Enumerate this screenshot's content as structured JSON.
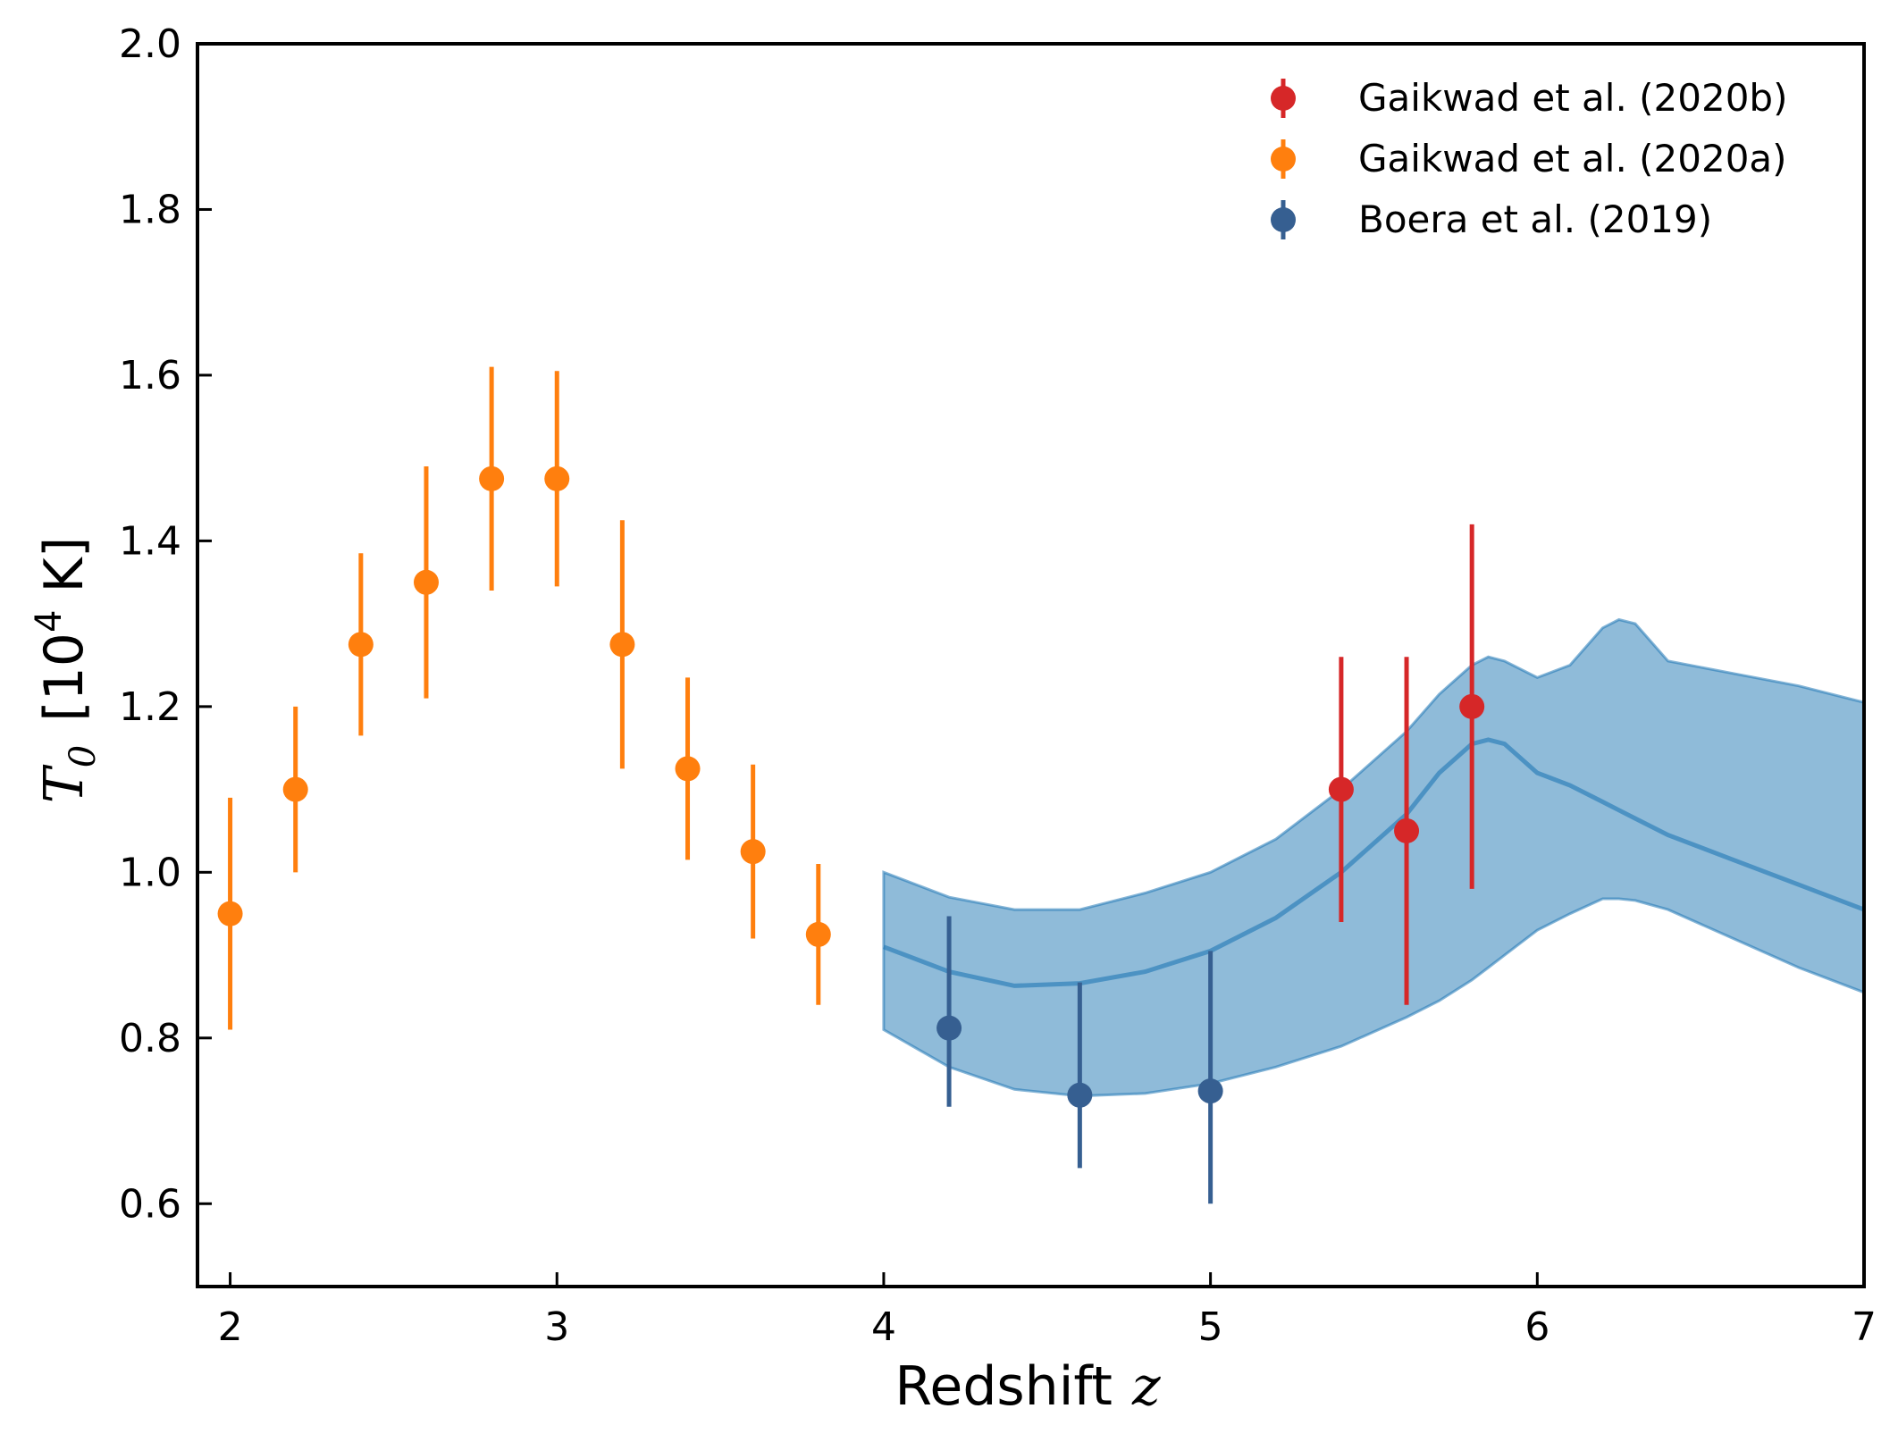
{
  "chart_data": {
    "type": "scatter",
    "xlabel": "Redshift",
    "xlabel_var": "z",
    "ylabel_var": "T",
    "ylabel_sub": "0",
    "ylabel_unit_open": "[10",
    "ylabel_unit_exp": "4",
    "ylabel_unit_close": " K]",
    "xlim": [
      1.9,
      7.0
    ],
    "ylim": [
      0.5,
      2.0
    ],
    "xticks": [
      2,
      3,
      4,
      5,
      6,
      7
    ],
    "yticks": [
      0.6,
      0.8,
      1.0,
      1.2,
      1.4,
      1.6,
      1.8,
      2.0
    ],
    "xtick_labels": [
      "2",
      "3",
      "4",
      "5",
      "6",
      "7"
    ],
    "ytick_labels": [
      "0.6",
      "0.8",
      "1.0",
      "1.2",
      "1.4",
      "1.6",
      "1.8",
      "2.0"
    ],
    "legend_position": "top-right",
    "series": [
      {
        "name": "Gaikwad et al. (2020b)",
        "color": "#d62728",
        "points": [
          {
            "x": 5.4,
            "y": 1.1,
            "lo": 0.94,
            "hi": 1.26
          },
          {
            "x": 5.6,
            "y": 1.05,
            "lo": 0.84,
            "hi": 1.26
          },
          {
            "x": 5.8,
            "y": 1.2,
            "lo": 0.98,
            "hi": 1.42
          }
        ]
      },
      {
        "name": "Gaikwad et al. (2020a)",
        "color": "#ff7f0e",
        "points": [
          {
            "x": 2.0,
            "y": 0.95,
            "lo": 0.81,
            "hi": 1.09
          },
          {
            "x": 2.2,
            "y": 1.1,
            "lo": 1.0,
            "hi": 1.2
          },
          {
            "x": 2.4,
            "y": 1.275,
            "lo": 1.165,
            "hi": 1.385
          },
          {
            "x": 2.6,
            "y": 1.35,
            "lo": 1.21,
            "hi": 1.49
          },
          {
            "x": 2.8,
            "y": 1.475,
            "lo": 1.34,
            "hi": 1.61
          },
          {
            "x": 3.0,
            "y": 1.475,
            "lo": 1.345,
            "hi": 1.605
          },
          {
            "x": 3.2,
            "y": 1.275,
            "lo": 1.125,
            "hi": 1.425
          },
          {
            "x": 3.4,
            "y": 1.125,
            "lo": 1.015,
            "hi": 1.235
          },
          {
            "x": 3.6,
            "y": 1.025,
            "lo": 0.92,
            "hi": 1.13
          },
          {
            "x": 3.8,
            "y": 0.925,
            "lo": 0.84,
            "hi": 1.01
          }
        ]
      },
      {
        "name": "Boera et al. (2019)",
        "color": "#365f91",
        "points": [
          {
            "x": 4.2,
            "y": 0.812,
            "lo": 0.717,
            "hi": 0.947
          },
          {
            "x": 4.6,
            "y": 0.731,
            "lo": 0.643,
            "hi": 0.867
          },
          {
            "x": 5.0,
            "y": 0.736,
            "lo": 0.6,
            "hi": 0.905
          }
        ]
      }
    ],
    "model_band": {
      "color": "#1f77b4",
      "x": [
        4.0,
        4.2,
        4.4,
        4.6,
        4.8,
        5.0,
        5.2,
        5.4,
        5.6,
        5.7,
        5.8,
        5.85,
        5.9,
        6.0,
        6.1,
        6.2,
        6.25,
        6.3,
        6.4,
        6.6,
        6.8,
        7.0
      ],
      "upper": [
        1.0,
        0.97,
        0.955,
        0.955,
        0.975,
        1.0,
        1.04,
        1.1,
        1.17,
        1.215,
        1.25,
        1.26,
        1.255,
        1.235,
        1.25,
        1.295,
        1.305,
        1.3,
        1.255,
        1.24,
        1.225,
        1.205
      ],
      "median": [
        0.91,
        0.88,
        0.863,
        0.866,
        0.88,
        0.905,
        0.945,
        1.0,
        1.07,
        1.12,
        1.155,
        1.16,
        1.155,
        1.12,
        1.105,
        1.085,
        1.075,
        1.065,
        1.045,
        1.015,
        0.985,
        0.955
      ],
      "lower": [
        0.81,
        0.765,
        0.738,
        0.73,
        0.733,
        0.745,
        0.765,
        0.79,
        0.825,
        0.845,
        0.87,
        0.885,
        0.9,
        0.93,
        0.95,
        0.968,
        0.968,
        0.966,
        0.955,
        0.92,
        0.885,
        0.855
      ]
    }
  }
}
